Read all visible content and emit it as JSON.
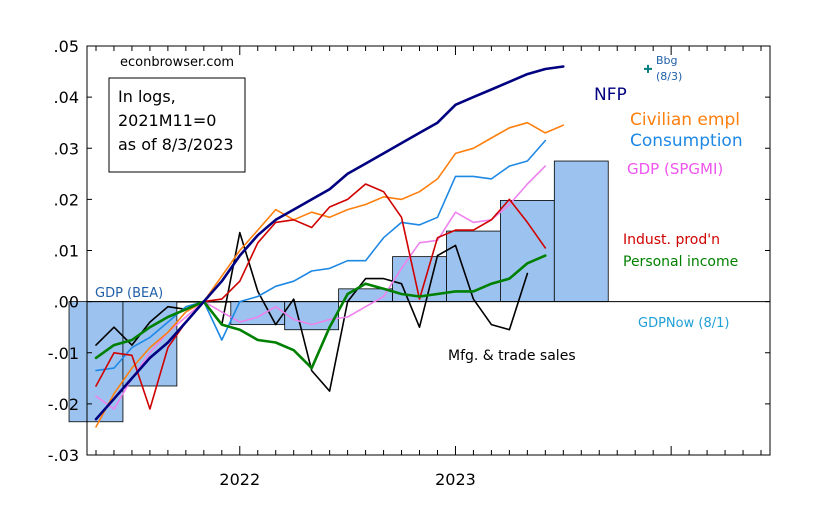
{
  "chart_data": {
    "type": "line",
    "source": "econbrowser.com",
    "note_lines": [
      "In logs,",
      "2021M11=0",
      "as of 8/3/2023"
    ],
    "ylim": [
      -0.03,
      0.05
    ],
    "yticks": [
      0.05,
      0.04,
      0.03,
      0.02,
      0.01,
      0.0,
      -0.01,
      -0.02,
      -0.03
    ],
    "ytick_labels": [
      ".05",
      ".04",
      ".03",
      ".02",
      ".01",
      ".00",
      "-.01",
      "-.02",
      "-.03"
    ],
    "x_start": "2021-05",
    "x_end": "2024-06",
    "xticks": [
      {
        "date": "2022-01",
        "label": "2022"
      },
      {
        "date": "2023-01",
        "label": "2023"
      }
    ],
    "colors": {
      "nfp": "#000080",
      "civ": "#ff7f0e",
      "cons": "#1e88e5",
      "gdp_spgmi": "#ee82ee",
      "ip": "#d00000",
      "pi": "#008000",
      "mfg": "#000000",
      "bars": "#9cc3ef",
      "bar_edge": "#000000",
      "bbg": "#008080",
      "zero": "#000000"
    },
    "gdp_bea": [
      {
        "q": "2021Q2",
        "value": -0.0235
      },
      {
        "q": "2021Q3",
        "value": -0.0165
      },
      {
        "q": "2021Q4",
        "value": 0.0
      },
      {
        "q": "2022Q1",
        "value": -0.0045
      },
      {
        "q": "2022Q2",
        "value": -0.0055
      },
      {
        "q": "2022Q3",
        "value": 0.0025
      },
      {
        "q": "2022Q4",
        "value": 0.0088
      },
      {
        "q": "2023Q1",
        "value": 0.0138
      },
      {
        "q": "2023Q2",
        "value": 0.0198
      }
    ],
    "gdpnow": {
      "q": "2023Q3",
      "value": 0.0275
    },
    "series": [
      {
        "key": "nfp",
        "label": "NFP",
        "width": 2.6,
        "x": [
          "2021-05",
          "2021-06",
          "2021-07",
          "2021-08",
          "2021-09",
          "2021-10",
          "2021-11",
          "2021-12",
          "2022-01",
          "2022-02",
          "2022-03",
          "2022-04",
          "2022-05",
          "2022-06",
          "2022-07",
          "2022-08",
          "2022-09",
          "2022-10",
          "2022-11",
          "2022-12",
          "2023-01",
          "2023-02",
          "2023-03",
          "2023-04",
          "2023-05",
          "2023-06",
          "2023-07"
        ],
        "values": [
          -0.023,
          -0.019,
          -0.015,
          -0.011,
          -0.008,
          -0.004,
          0.0,
          0.004,
          0.009,
          0.013,
          0.016,
          0.018,
          0.02,
          0.022,
          0.025,
          0.027,
          0.029,
          0.031,
          0.033,
          0.035,
          0.0385,
          0.04,
          0.0415,
          0.043,
          0.0445,
          0.0455,
          0.046
        ]
      },
      {
        "key": "civ",
        "label": "Civilian empl",
        "width": 1.6,
        "x": [
          "2021-05",
          "2021-06",
          "2021-07",
          "2021-08",
          "2021-09",
          "2021-10",
          "2021-11",
          "2021-12",
          "2022-01",
          "2022-02",
          "2022-03",
          "2022-04",
          "2022-05",
          "2022-06",
          "2022-07",
          "2022-08",
          "2022-09",
          "2022-10",
          "2022-11",
          "2022-12",
          "2023-01",
          "2023-02",
          "2023-03",
          "2023-04",
          "2023-05",
          "2023-06",
          "2023-07"
        ],
        "values": [
          -0.0245,
          -0.018,
          -0.013,
          -0.009,
          -0.006,
          -0.002,
          0.0,
          0.005,
          0.01,
          0.014,
          0.018,
          0.016,
          0.0175,
          0.0165,
          0.018,
          0.019,
          0.0205,
          0.02,
          0.0215,
          0.024,
          0.029,
          0.03,
          0.032,
          0.034,
          0.035,
          0.033,
          0.0345
        ]
      },
      {
        "key": "cons",
        "label": "Consumption",
        "width": 1.6,
        "x": [
          "2021-05",
          "2021-06",
          "2021-07",
          "2021-08",
          "2021-09",
          "2021-10",
          "2021-11",
          "2021-12",
          "2022-01",
          "2022-02",
          "2022-03",
          "2022-04",
          "2022-05",
          "2022-06",
          "2022-07",
          "2022-08",
          "2022-09",
          "2022-10",
          "2022-11",
          "2022-12",
          "2023-01",
          "2023-02",
          "2023-03",
          "2023-04",
          "2023-05",
          "2023-06"
        ],
        "values": [
          -0.0135,
          -0.013,
          -0.009,
          -0.007,
          -0.004,
          -0.001,
          0.0,
          -0.0075,
          0.0,
          0.001,
          0.003,
          0.004,
          0.006,
          0.0065,
          0.008,
          0.008,
          0.0125,
          0.0155,
          0.015,
          0.0165,
          0.0245,
          0.0245,
          0.024,
          0.0265,
          0.0275,
          0.0315
        ]
      },
      {
        "key": "gdp_spgmi",
        "label": "GDP (SPGMI)",
        "width": 1.6,
        "x": [
          "2021-05",
          "2021-06",
          "2021-07",
          "2021-08",
          "2021-09",
          "2021-10",
          "2021-11",
          "2021-12",
          "2022-01",
          "2022-02",
          "2022-03",
          "2022-04",
          "2022-05",
          "2022-06",
          "2022-07",
          "2022-08",
          "2022-09",
          "2022-10",
          "2022-11",
          "2022-12",
          "2023-01",
          "2023-02",
          "2023-03",
          "2023-04",
          "2023-05",
          "2023-06"
        ],
        "values": [
          -0.0185,
          -0.021,
          -0.015,
          -0.01,
          -0.006,
          -0.003,
          0.0,
          -0.002,
          -0.004,
          -0.003,
          -0.001,
          -0.0035,
          -0.0045,
          -0.0035,
          -0.003,
          -0.001,
          0.001,
          0.0065,
          0.0115,
          0.012,
          0.0175,
          0.0155,
          0.016,
          0.019,
          0.023,
          0.0265
        ]
      },
      {
        "key": "ip",
        "label": "Indust. prod'n",
        "width": 1.6,
        "x": [
          "2021-05",
          "2021-06",
          "2021-07",
          "2021-08",
          "2021-09",
          "2021-10",
          "2021-11",
          "2021-12",
          "2022-01",
          "2022-02",
          "2022-03",
          "2022-04",
          "2022-05",
          "2022-06",
          "2022-07",
          "2022-08",
          "2022-09",
          "2022-10",
          "2022-11",
          "2022-12",
          "2023-01",
          "2023-02",
          "2023-03",
          "2023-04",
          "2023-05",
          "2023-06"
        ],
        "values": [
          -0.0165,
          -0.01,
          -0.0105,
          -0.021,
          -0.009,
          -0.004,
          0.0,
          0.0005,
          0.004,
          0.0115,
          0.0155,
          0.016,
          0.0145,
          0.0185,
          0.02,
          0.023,
          0.0215,
          0.0165,
          0.0005,
          0.0125,
          0.014,
          0.014,
          0.016,
          0.02,
          0.0155,
          0.0105
        ]
      },
      {
        "key": "pi",
        "label": "Personal income",
        "width": 2.6,
        "x": [
          "2021-05",
          "2021-06",
          "2021-07",
          "2021-08",
          "2021-09",
          "2021-10",
          "2021-11",
          "2021-12",
          "2022-01",
          "2022-02",
          "2022-03",
          "2022-04",
          "2022-05",
          "2022-06",
          "2022-07",
          "2022-08",
          "2022-09",
          "2022-10",
          "2022-11",
          "2022-12",
          "2023-01",
          "2023-02",
          "2023-03",
          "2023-04",
          "2023-05",
          "2023-06"
        ],
        "values": [
          -0.011,
          -0.0085,
          -0.0075,
          -0.005,
          -0.003,
          -0.0015,
          0.0,
          -0.0045,
          -0.0055,
          -0.0075,
          -0.008,
          -0.0095,
          -0.013,
          -0.005,
          0.0015,
          0.0035,
          0.0025,
          0.0015,
          0.001,
          0.0015,
          0.002,
          0.002,
          0.0035,
          0.0045,
          0.0075,
          0.009
        ]
      },
      {
        "key": "mfg",
        "label": "Mfg. & trade sales",
        "width": 1.6,
        "x": [
          "2021-05",
          "2021-06",
          "2021-07",
          "2021-08",
          "2021-09",
          "2021-10",
          "2021-11",
          "2021-12",
          "2022-01",
          "2022-02",
          "2022-03",
          "2022-04",
          "2022-05",
          "2022-06",
          "2022-07",
          "2022-08",
          "2022-09",
          "2022-10",
          "2022-11",
          "2022-12",
          "2023-01",
          "2023-02",
          "2023-03",
          "2023-04",
          "2023-05"
        ],
        "values": [
          -0.0085,
          -0.005,
          -0.0085,
          -0.004,
          -0.001,
          -0.0015,
          0.0,
          -0.0045,
          0.0135,
          0.002,
          -0.0045,
          0.0005,
          -0.0135,
          -0.0175,
          0.0,
          0.0045,
          0.0045,
          0.0035,
          -0.005,
          0.009,
          0.011,
          0.0005,
          -0.0045,
          -0.0055,
          0.0055
        ]
      }
    ],
    "bbg": {
      "label": "Bbg",
      "date_label": "(8/3)",
      "date": "2023-07",
      "value": 0.0465
    },
    "labels": {
      "gdp_bea": "GDP (BEA)",
      "gdpnow": "GDPNow (8/1)"
    }
  }
}
